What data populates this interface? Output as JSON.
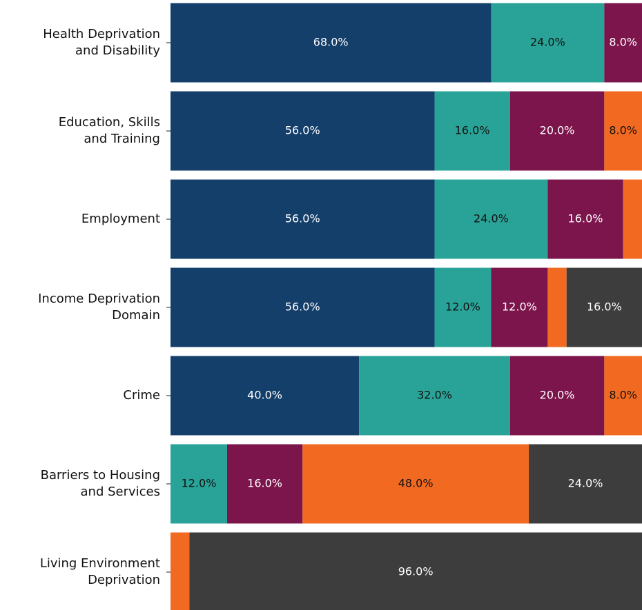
{
  "chart_data": {
    "type": "stacked_bar_horizontal",
    "categories": [
      "Health Deprivation\nand Disability",
      "Education, Skills\nand Training",
      "Employment",
      "Income Deprivation\nDomain",
      "Crime",
      "Barriers to Housing\nand Services",
      "Living Environment\nDeprivation"
    ],
    "xlim": [
      0,
      100
    ],
    "series": [
      {
        "color": "#143f6b",
        "values": [
          68,
          56,
          56,
          56,
          40,
          0,
          0
        ],
        "value_labels": [
          "68.0%",
          "56.0%",
          "56.0%",
          "56.0%",
          "40.0%",
          null,
          null
        ]
      },
      {
        "color": "#29a398",
        "values": [
          24,
          16,
          24,
          12,
          32,
          12,
          0
        ],
        "value_labels": [
          "24.0%",
          "16.0%",
          "24.0%",
          "12.0%",
          "32.0%",
          "12.0%",
          null
        ]
      },
      {
        "color": "#7d154d",
        "values": [
          8,
          20,
          16,
          12,
          20,
          16,
          0
        ],
        "value_labels": [
          "8.0%",
          "20.0%",
          "16.0%",
          "12.0%",
          "20.0%",
          "16.0%",
          null
        ]
      },
      {
        "color": "#f26a21",
        "values": [
          0,
          8,
          4,
          4,
          8,
          48,
          4
        ],
        "value_labels": [
          null,
          "8.0%",
          null,
          null,
          "8.0%",
          "48.0%",
          null
        ]
      },
      {
        "color": "#3d3d3d",
        "values": [
          0,
          0,
          0,
          16,
          0,
          24,
          96
        ],
        "value_labels": [
          null,
          null,
          null,
          "16.0%",
          null,
          "24.0%",
          "96.0%"
        ]
      }
    ]
  }
}
